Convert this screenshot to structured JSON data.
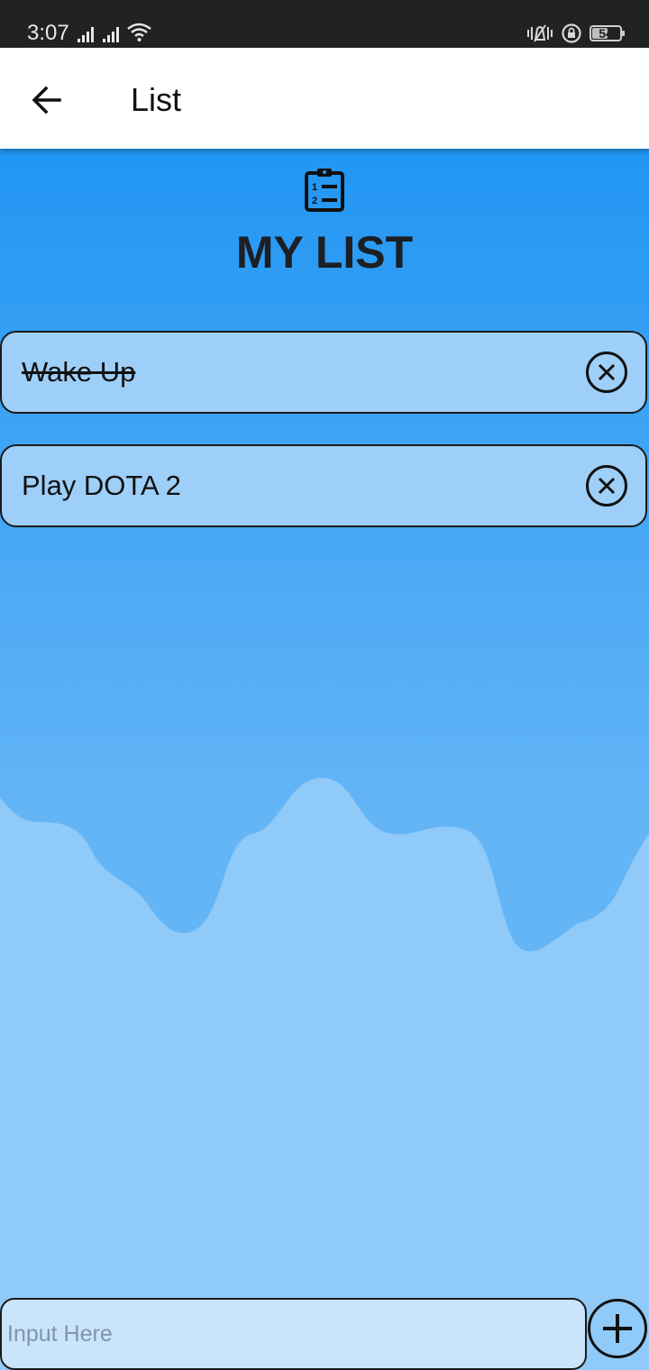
{
  "status_bar": {
    "time": "3:07",
    "battery_level": "54",
    "battery_fraction": 0.54,
    "icons": [
      "signal-icon",
      "signal-icon",
      "wifi-icon",
      "vibrate-icon",
      "rotation-lock-icon",
      "battery-icon"
    ]
  },
  "app_bar": {
    "title": "List",
    "back_icon": "arrow-left-icon"
  },
  "main": {
    "header_icon": "clipboard-list-icon",
    "heading": "MY LIST",
    "items": [
      {
        "text": "Wake Up",
        "completed": true
      },
      {
        "text": "Play DOTA 2",
        "completed": false
      }
    ]
  },
  "input": {
    "placeholder": "Input Here",
    "value": ""
  },
  "add_button": {
    "icon": "plus-icon"
  },
  "colors": {
    "status_bar": "#222222",
    "app_bar": "#ffffff",
    "background_top": "#2196f3",
    "background_mid": "#64b5f6",
    "wave": "#90caf9",
    "item_fill": "#9ecff8",
    "input_fill": "#c9e4fb",
    "text": "#1c1f24"
  }
}
